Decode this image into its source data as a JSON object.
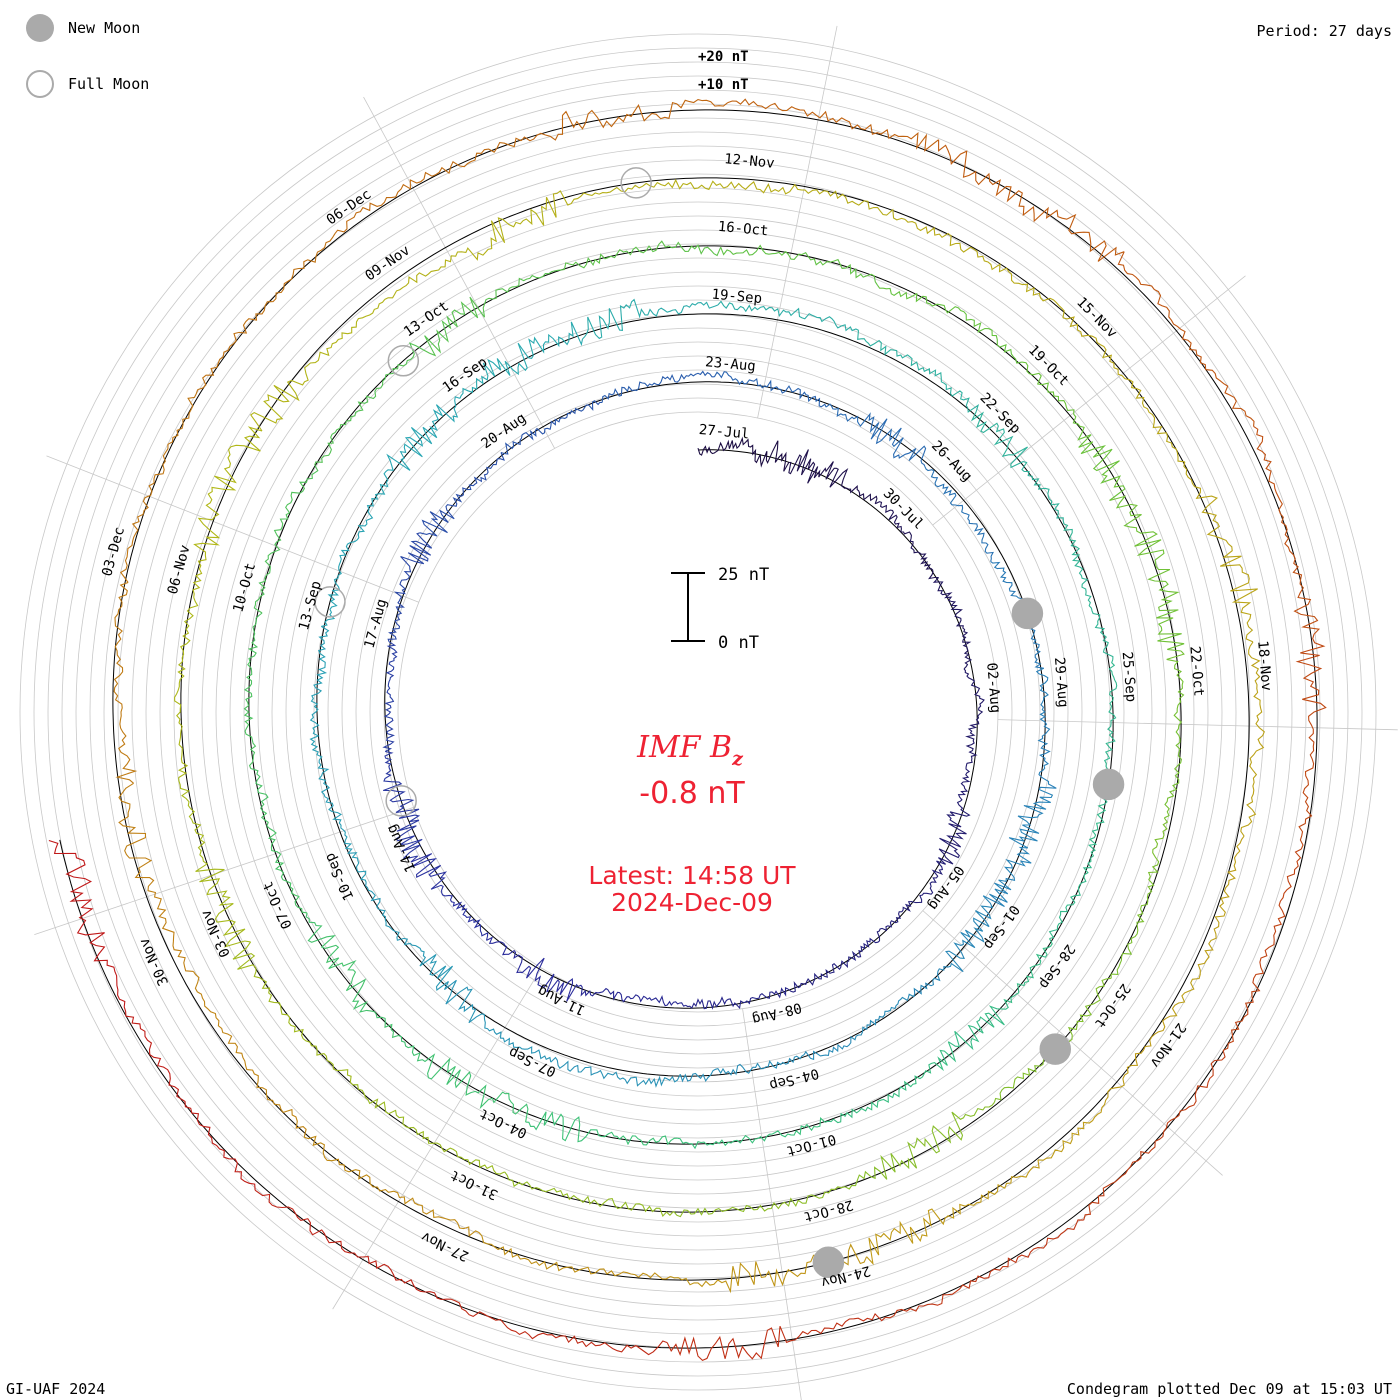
{
  "legend": {
    "new_moon_label": "New Moon",
    "full_moon_label": "Full Moon",
    "new_moon_color": "#aaaaaa",
    "full_moon_color": "#aaaaaa"
  },
  "header": {
    "period_label": "Period: 27 days"
  },
  "footer": {
    "credit": "GI-UAF 2024",
    "plotted": "Condegram plotted Dec 09 at 15:03 UT"
  },
  "center": {
    "quantity": "IMF B",
    "subscript": "z",
    "current_value": "-0.8 nT",
    "latest_line": "Latest: 14:58 UT",
    "date_line": "2024-Dec-09",
    "text_color": "#ee2233"
  },
  "chart_data": {
    "type": "line",
    "plot": "condegram (polar spiral, one ring per 27-day rotation)",
    "period_days": 27,
    "scale_bar": {
      "top_label": "25 nT",
      "bottom_label": "0 nT",
      "span_nT": 25
    },
    "ring_labels": [
      "+20 nT",
      "+10 nT"
    ],
    "rotations": [
      {
        "color": "#1c0b3b",
        "labels": [
          "27-Jul",
          "30-Jul",
          "02-Aug",
          "05-Aug",
          "08-Aug",
          "11-Aug",
          "14-Aug",
          "17-Aug",
          "20-Aug"
        ]
      },
      {
        "color": "#2b2d9e",
        "labels": [
          "23-Aug",
          "26-Aug",
          "29-Aug",
          "01-Sep",
          "04-Sep",
          "07-Sep",
          "10-Sep",
          "13-Sep",
          "16-Sep"
        ]
      },
      {
        "color": "#2aa8b4",
        "labels": [
          "19-Sep",
          "22-Sep",
          "25-Sep",
          "28-Sep",
          "01-Oct",
          "04-Oct",
          "07-Oct",
          "10-Oct",
          "13-Oct"
        ]
      },
      {
        "color": "#6ac23a",
        "labels": [
          "16-Oct",
          "19-Oct",
          "22-Oct",
          "25-Oct",
          "28-Oct",
          "31-Oct",
          "03-Nov",
          "06-Nov",
          "09-Nov"
        ]
      },
      {
        "color": "#c09a18",
        "labels": [
          "12-Nov",
          "15-Nov",
          "18-Nov",
          "21-Nov",
          "24-Nov",
          "27-Nov",
          "30-Nov",
          "03-Dec",
          "06-Dec"
        ]
      },
      {
        "color": "#c01818",
        "labels": []
      }
    ],
    "moons": [
      {
        "kind": "new",
        "day": 32.5
      },
      {
        "kind": "new",
        "day": 61.5
      },
      {
        "kind": "new",
        "day": 91
      },
      {
        "kind": "new",
        "day": 120.5
      },
      {
        "kind": "full",
        "day": 19
      },
      {
        "kind": "full",
        "day": 48.5
      },
      {
        "kind": "full",
        "day": 78
      },
      {
        "kind": "full",
        "day": 107.5
      }
    ],
    "series_color_gradient": [
      "#1c0b3b",
      "#2b2d9e",
      "#2a7fb8",
      "#2aa8b4",
      "#3cc27a",
      "#6ac23a",
      "#b0b818",
      "#c09a18",
      "#c06010",
      "#c01818"
    ],
    "grid": true
  }
}
